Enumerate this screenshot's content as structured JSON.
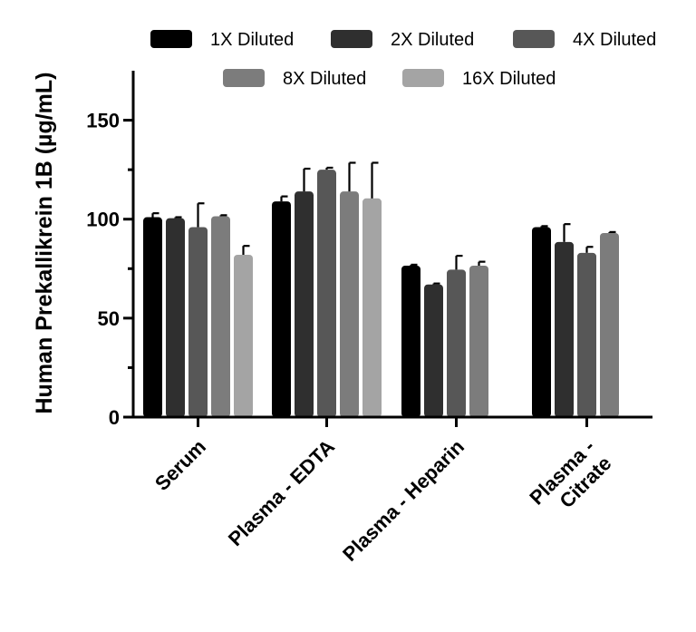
{
  "chart_data": {
    "type": "bar",
    "title": "",
    "xlabel": "",
    "ylabel": "Human  Prekallikrein 1B (µg/mL)",
    "ylim": [
      0,
      175
    ],
    "yticks": [
      0,
      50,
      100,
      150
    ],
    "legend_position": "top",
    "categories": [
      {
        "id": "serum",
        "lines": [
          "Serum"
        ]
      },
      {
        "id": "edta",
        "lines": [
          "Plasma - EDTA"
        ]
      },
      {
        "id": "heparin",
        "lines": [
          "Plasma - Heparin"
        ]
      },
      {
        "id": "citrate",
        "lines": [
          "Plasma -",
          "Citrate"
        ]
      }
    ],
    "series": [
      {
        "name": "1X Diluted",
        "color": "#000000",
        "values": [
          101,
          109,
          76.5,
          96
        ],
        "errors": [
          2,
          2.5,
          0.5,
          0.5
        ]
      },
      {
        "name": "2X Diluted",
        "color": "#2f2f2f",
        "values": [
          100.5,
          114,
          67,
          88.5
        ],
        "errors": [
          0.5,
          11.5,
          0.5,
          9
        ]
      },
      {
        "name": "4X Diluted",
        "color": "#575757",
        "values": [
          96,
          125,
          74.5,
          83
        ],
        "errors": [
          12,
          1,
          7,
          3
        ]
      },
      {
        "name": "8X Diluted",
        "color": "#7c7c7c",
        "values": [
          101.5,
          114,
          76.5,
          93
        ],
        "errors": [
          0.5,
          14.5,
          2,
          0.5
        ]
      },
      {
        "name": "16X Diluted",
        "color": "#a4a4a4",
        "values": [
          82,
          110.5,
          null,
          null
        ],
        "errors": [
          4.5,
          18,
          null,
          null
        ]
      }
    ]
  }
}
